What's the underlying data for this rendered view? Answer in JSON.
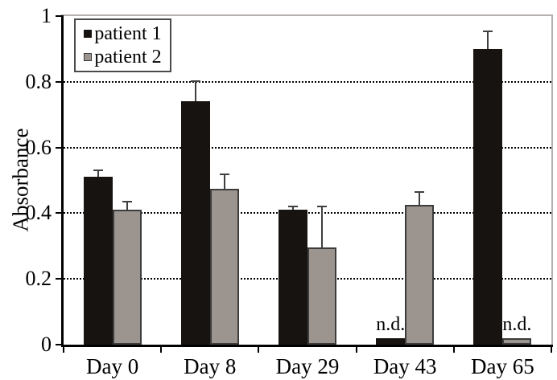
{
  "figure": {
    "y_axis_title": "Absorbance"
  },
  "chart_data": {
    "type": "bar",
    "title": "",
    "xlabel": "",
    "ylabel": "Absorbance",
    "ylim": [
      0,
      1
    ],
    "yticks": [
      0,
      0.2,
      0.4,
      0.6,
      0.8,
      1
    ],
    "ytick_labels": [
      "0",
      "0.2",
      "0.4",
      "0.6",
      "0.8",
      "1"
    ],
    "grid": "horizontal dotted lines at 0.2 intervals",
    "legend_position": "top-left inside plot area",
    "categories": [
      "Day 0",
      "Day 8",
      "Day 29",
      "Day 43",
      "Day 65"
    ],
    "series": [
      {
        "name": "patient 1",
        "color": "#171310",
        "border_color": "#171310",
        "values": [
          0.51,
          0.74,
          0.41,
          0.02,
          0.9
        ],
        "errors_plus": [
          0.02,
          0.06,
          0.01,
          0,
          0.055
        ],
        "not_detected": [
          false,
          false,
          false,
          true,
          false
        ]
      },
      {
        "name": "patient 2",
        "color": "#9c948f",
        "border_color": "#3c3c3c",
        "values": [
          0.41,
          0.475,
          0.295,
          0.425,
          0.02
        ],
        "errors_plus": [
          0.025,
          0.045,
          0.125,
          0.04,
          0
        ],
        "not_detected": [
          false,
          false,
          false,
          false,
          true
        ]
      }
    ],
    "nd_text": "n.d.",
    "colors": {
      "background": "#ffffff",
      "frame": "#b5afad",
      "axis": "#000000",
      "grid": "#000000",
      "error_bar": "#3f3f3f"
    }
  }
}
